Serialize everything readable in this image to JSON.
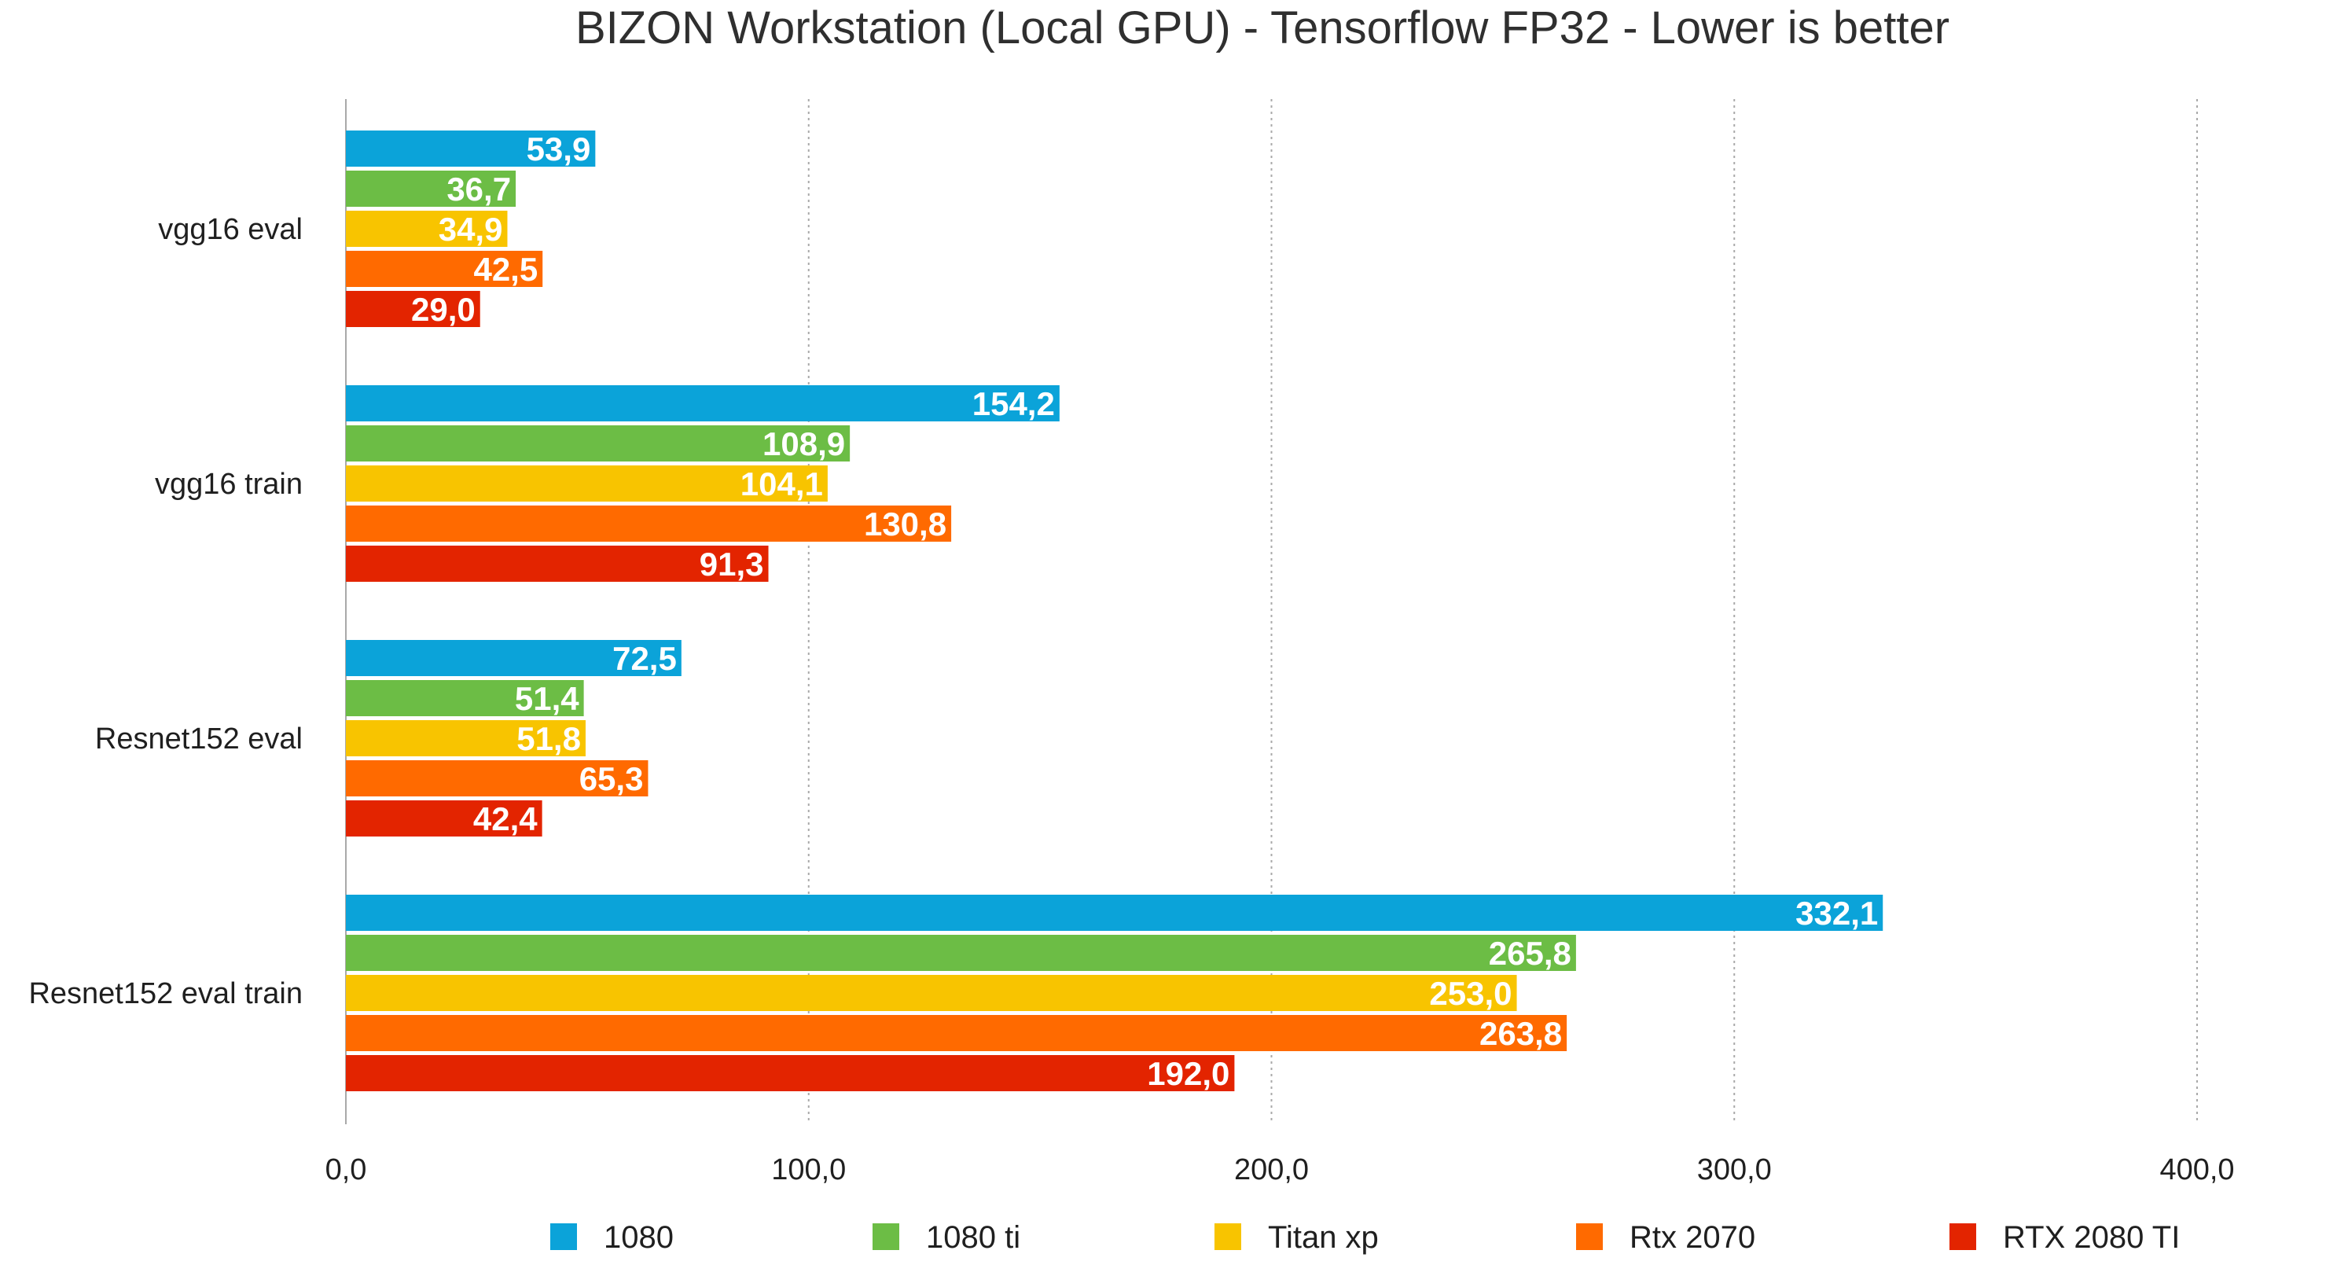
{
  "chart_data": {
    "type": "bar",
    "orientation": "horizontal",
    "title": "BIZON Workstation (Local GPU) - Tensorflow FP32 - Lower is better",
    "categories": [
      "vgg16 eval",
      "vgg16 train",
      "Resnet152 eval",
      "Resnet152 eval train"
    ],
    "series": [
      {
        "name": "1080",
        "color": "#0ba3d9",
        "values": [
          53.9,
          154.2,
          72.5,
          332.1
        ],
        "labels": [
          "53,9",
          "154,2",
          "72,5",
          "332,1"
        ]
      },
      {
        "name": "1080 ti",
        "color": "#6cbd45",
        "values": [
          36.7,
          108.9,
          51.4,
          265.8
        ],
        "labels": [
          "36,7",
          "108,9",
          "51,4",
          "265,8"
        ]
      },
      {
        "name": "Titan xp",
        "color": "#f8c400",
        "values": [
          34.9,
          104.1,
          51.8,
          253.0
        ],
        "labels": [
          "34,9",
          "104,1",
          "51,8",
          "253,0"
        ]
      },
      {
        "name": "Rtx 2070",
        "color": "#ff6a00",
        "values": [
          42.5,
          130.8,
          65.3,
          263.8
        ],
        "labels": [
          "42,5",
          "130,8",
          "65,3",
          "263,8"
        ]
      },
      {
        "name": "RTX 2080 TI",
        "color": "#e32400",
        "values": [
          29.0,
          91.3,
          42.4,
          192.0
        ],
        "labels": [
          "29,0",
          "91,3",
          "42,4",
          "192,0"
        ]
      }
    ],
    "xlim": [
      0,
      400
    ],
    "xticks": [
      0,
      100,
      200,
      300,
      400
    ],
    "xtick_labels": [
      "0,0",
      "100,0",
      "200,0",
      "300,0",
      "400,0"
    ],
    "grid": "vertical dotted",
    "legend_position": "bottom",
    "data_labels": "inside end, white"
  }
}
